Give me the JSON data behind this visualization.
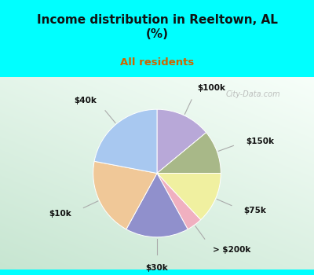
{
  "title": "Income distribution in Reeltown, AL\n(%)",
  "subtitle": "All residents",
  "title_color": "#111111",
  "subtitle_color": "#cc6600",
  "bg_top_color": "#00ffff",
  "watermark": "City-Data.com",
  "watermark_color": "#aaaaaa",
  "slices": [
    {
      "label": "$100k",
      "value": 14,
      "color": "#b8a8d8"
    },
    {
      "label": "$150k",
      "value": 11,
      "color": "#a8b888"
    },
    {
      "label": "$75k",
      "value": 13,
      "color": "#f0f0a0"
    },
    {
      "label": "> $200k",
      "value": 4,
      "color": "#f0b0c0"
    },
    {
      "label": "$30k",
      "value": 16,
      "color": "#9090cc"
    },
    {
      "label": "$10k",
      "value": 20,
      "color": "#f0c898"
    },
    {
      "label": "$40k",
      "value": 22,
      "color": "#a8c8f0"
    }
  ]
}
